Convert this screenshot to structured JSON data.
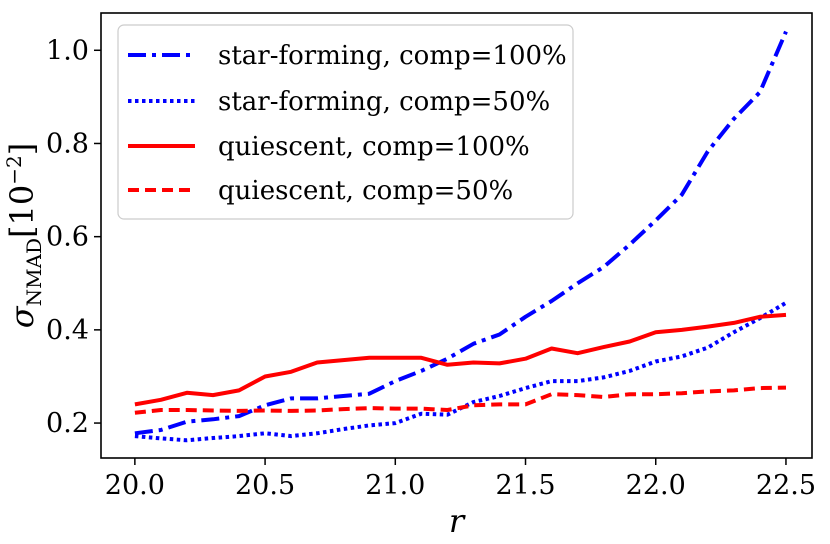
{
  "chart_data": {
    "type": "line",
    "xlabel": "r",
    "ylabel": {
      "symbol": "σ",
      "subscript": "NMAD",
      "unit_open": "[10",
      "unit_exp": "−2",
      "unit_close": "]"
    },
    "xlim": [
      19.87,
      22.6
    ],
    "ylim": [
      0.125,
      1.08
    ],
    "xticks": [
      20.0,
      20.5,
      21.0,
      21.5,
      22.0,
      22.5
    ],
    "xtick_labels": [
      "20.0",
      "20.5",
      "21.0",
      "21.5",
      "22.0",
      "22.5"
    ],
    "yticks": [
      0.2,
      0.4,
      0.6,
      0.8,
      1.0
    ],
    "ytick_labels": [
      "0.2",
      "0.4",
      "0.6",
      "0.8",
      "1.0"
    ],
    "grid": false,
    "legend_position": "top-left",
    "x": [
      20.0,
      20.1,
      20.2,
      20.3,
      20.4,
      20.5,
      20.6,
      20.7,
      20.8,
      20.9,
      21.0,
      21.1,
      21.2,
      21.3,
      21.4,
      21.5,
      21.6,
      21.7,
      21.8,
      21.9,
      22.0,
      22.1,
      22.2,
      22.3,
      22.4,
      22.5
    ],
    "series": [
      {
        "name": "star-forming, comp=100%",
        "color": "#0000ff",
        "style": "dashdot",
        "values": [
          0.178,
          0.185,
          0.203,
          0.208,
          0.215,
          0.238,
          0.253,
          0.253,
          0.258,
          0.263,
          0.29,
          0.312,
          0.338,
          0.37,
          0.39,
          0.428,
          0.462,
          0.5,
          0.535,
          0.583,
          0.635,
          0.69,
          0.783,
          0.853,
          0.91,
          1.04
        ]
      },
      {
        "name": "star-forming, comp=50%",
        "color": "#0000ff",
        "style": "dotted",
        "values": [
          0.172,
          0.167,
          0.163,
          0.168,
          0.172,
          0.178,
          0.172,
          0.178,
          0.187,
          0.195,
          0.2,
          0.22,
          0.218,
          0.245,
          0.258,
          0.275,
          0.29,
          0.29,
          0.298,
          0.312,
          0.332,
          0.343,
          0.362,
          0.395,
          0.425,
          0.458
        ]
      },
      {
        "name": "quiescent, comp=100%",
        "color": "#ff0000",
        "style": "solid",
        "values": [
          0.24,
          0.25,
          0.265,
          0.26,
          0.27,
          0.3,
          0.31,
          0.33,
          0.335,
          0.34,
          0.34,
          0.34,
          0.325,
          0.33,
          0.328,
          0.338,
          0.36,
          0.35,
          0.363,
          0.375,
          0.395,
          0.4,
          0.407,
          0.415,
          0.428,
          0.432
        ]
      },
      {
        "name": "quiescent, comp=50%",
        "color": "#ff0000",
        "style": "dashed",
        "values": [
          0.222,
          0.228,
          0.228,
          0.227,
          0.226,
          0.227,
          0.226,
          0.227,
          0.23,
          0.232,
          0.231,
          0.231,
          0.228,
          0.238,
          0.24,
          0.24,
          0.262,
          0.26,
          0.256,
          0.262,
          0.262,
          0.264,
          0.268,
          0.27,
          0.275,
          0.276
        ]
      }
    ]
  }
}
